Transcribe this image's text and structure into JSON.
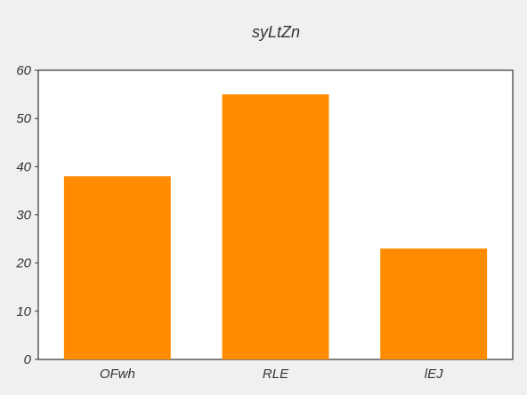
{
  "chart_data": {
    "type": "bar",
    "title": "syLtZn",
    "xlabel": "",
    "ylabel": "",
    "categories": [
      "OFwh",
      "RLE",
      "lEJ"
    ],
    "values": [
      38,
      55,
      23
    ],
    "ylim": [
      0,
      60
    ],
    "yticks": [
      0,
      10,
      20,
      30,
      40,
      50,
      60
    ],
    "grid": false,
    "legend": "none",
    "colors": {
      "bar": "#ff8c00",
      "plot_background": "#ffffff",
      "figure_background": "#f0f0f0",
      "axis": "#333333"
    }
  }
}
